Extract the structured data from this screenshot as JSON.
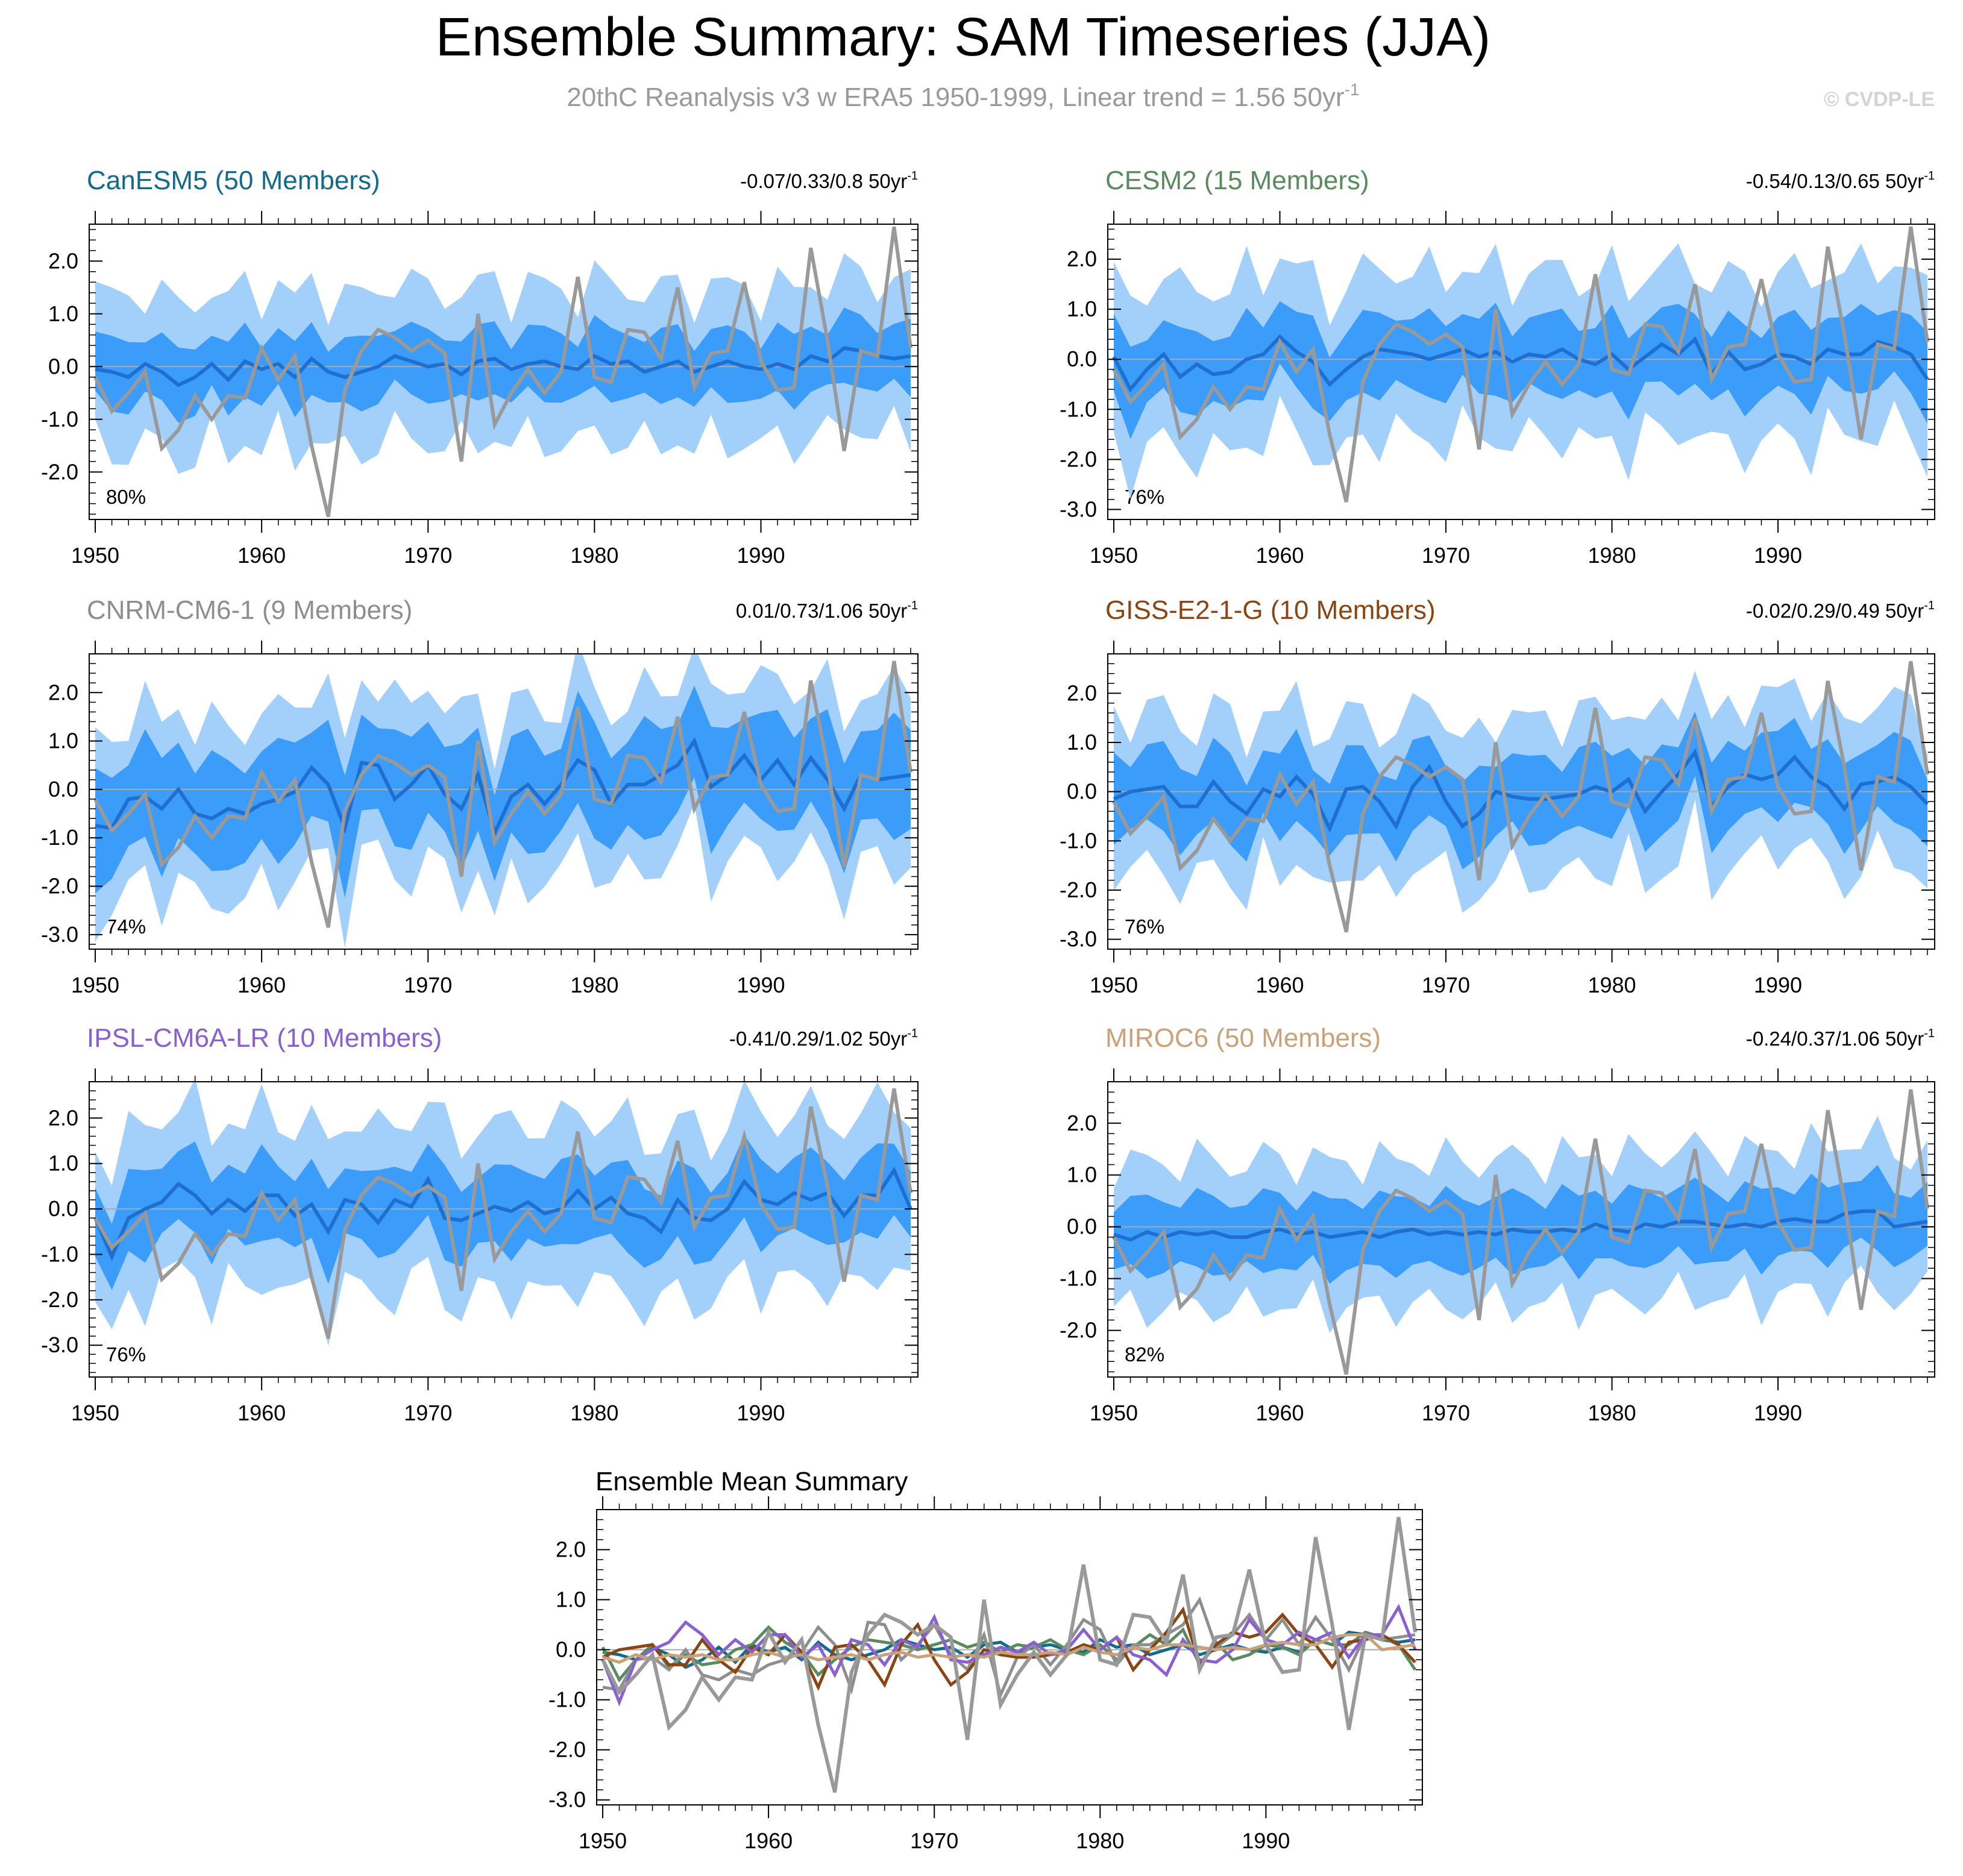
{
  "header": {
    "title": "Ensemble Summary: SAM Timeseries (JJA)",
    "subtitle": "20thC Reanalysis v3 w ERA5 1950-1999, Linear trend = 1.56 50yr",
    "subtitle_sup": "-1",
    "credit": "© CVDP-LE"
  },
  "colors": {
    "outer_band": "#a3d0fb",
    "inner_band": "#3b9cf9",
    "ens_mean": "#1f6fd1",
    "obs": "#999999",
    "zero_line": "#aaaaaa"
  },
  "observed": {
    "years": [
      1950,
      1951,
      1952,
      1953,
      1954,
      1955,
      1956,
      1957,
      1958,
      1959,
      1960,
      1961,
      1962,
      1963,
      1964,
      1965,
      1966,
      1967,
      1968,
      1969,
      1970,
      1971,
      1972,
      1973,
      1974,
      1975,
      1976,
      1977,
      1978,
      1979,
      1980,
      1981,
      1982,
      1983,
      1984,
      1985,
      1986,
      1987,
      1988,
      1989,
      1990,
      1991,
      1992,
      1993,
      1994,
      1995,
      1996,
      1997,
      1998,
      1999
    ],
    "values": [
      -0.2,
      -0.85,
      -0.5,
      -0.1,
      -1.55,
      -1.2,
      -0.55,
      -1.0,
      -0.55,
      -0.6,
      0.35,
      -0.25,
      0.2,
      -1.5,
      -2.85,
      -0.45,
      0.3,
      0.7,
      0.55,
      0.3,
      0.5,
      0.25,
      -1.8,
      1.0,
      -1.1,
      -0.5,
      -0.05,
      -0.5,
      -0.1,
      1.7,
      -0.2,
      -0.3,
      0.7,
      0.65,
      0.15,
      1.5,
      -0.4,
      0.25,
      0.3,
      1.6,
      0.1,
      -0.45,
      -0.4,
      2.25,
      0.5,
      -1.6,
      0.3,
      0.2,
      2.65,
      0.35
    ]
  },
  "chart_data": [
    {
      "type": "line",
      "title": "CanESM5 (50 Members)",
      "title_color": "#126a8d",
      "stats": "-0.07/0.33/0.8 50yr",
      "stats_sup": "-1",
      "percent": "80%",
      "ylim": [
        -2.9,
        2.7
      ],
      "ticks": [
        "2.0",
        "1.0",
        "0.0",
        "-1.0",
        "-2.0"
      ],
      "xticks": [
        "1950",
        "1960",
        "1970",
        "1980",
        "1990"
      ],
      "ens_mean": [
        -0.05,
        -0.1,
        -0.2,
        0.05,
        -0.1,
        -0.35,
        -0.2,
        0.05,
        -0.25,
        0.1,
        -0.05,
        0.05,
        -0.2,
        0.15,
        -0.1,
        -0.2,
        -0.1,
        0.0,
        0.2,
        0.1,
        0.0,
        0.05,
        -0.15,
        0.1,
        0.15,
        -0.05,
        0.05,
        0.1,
        0.0,
        -0.05,
        0.2,
        0.05,
        0.1,
        -0.1,
        0.0,
        0.1,
        -0.1,
        0.0,
        0.1,
        0.0,
        -0.05,
        0.05,
        -0.05,
        0.2,
        0.1,
        0.35,
        0.3,
        0.2,
        0.15,
        0.2
      ],
      "inner_half": [
        0.62,
        0.62,
        0.62,
        0.62,
        0.62,
        0.62,
        0.62,
        0.62,
        0.62,
        0.62,
        0.62,
        0.62,
        0.62,
        0.62,
        0.62,
        0.62,
        0.62,
        0.62,
        0.62,
        0.62,
        0.62,
        0.62,
        0.62,
        0.62,
        0.62,
        0.62,
        0.62,
        0.62,
        0.62,
        0.62,
        0.62,
        0.62,
        0.62,
        0.62,
        0.62,
        0.62,
        0.62,
        0.62,
        0.62,
        0.62,
        0.62,
        0.62,
        0.62,
        0.62,
        0.62,
        0.62,
        0.62,
        0.62,
        0.62,
        0.62
      ],
      "outer_half": [
        1.45,
        1.45,
        1.45,
        1.45,
        1.45,
        1.45,
        1.45,
        1.45,
        1.45,
        1.45,
        1.45,
        1.45,
        1.45,
        1.45,
        1.45,
        1.45,
        1.45,
        1.45,
        1.45,
        1.45,
        1.45,
        1.45,
        1.45,
        1.45,
        1.45,
        1.45,
        1.45,
        1.45,
        1.45,
        1.45,
        1.45,
        1.45,
        1.45,
        1.45,
        1.45,
        1.45,
        1.45,
        1.45,
        1.45,
        1.45,
        1.45,
        1.45,
        1.45,
        1.45,
        1.45,
        1.45,
        1.45,
        1.45,
        1.45,
        1.45
      ]
    },
    {
      "type": "line",
      "title": "CESM2 (15 Members)",
      "title_color": "#5a8a5f",
      "stats": "-0.54/0.13/0.65 50yr",
      "stats_sup": "-1",
      "percent": "76%",
      "ylim": [
        -3.2,
        2.7
      ],
      "ticks": [
        "2.0",
        "1.0",
        "0.0",
        "-1.0",
        "-2.0",
        "-3.0"
      ],
      "xticks": [
        "1950",
        "1960",
        "1970",
        "1980",
        "1990"
      ],
      "ens_mean": [
        0.05,
        -0.6,
        -0.2,
        0.1,
        -0.35,
        -0.1,
        -0.3,
        -0.25,
        0.0,
        0.1,
        0.45,
        0.15,
        -0.05,
        -0.5,
        -0.2,
        0.05,
        0.2,
        0.15,
        0.1,
        0.0,
        0.1,
        0.2,
        0.05,
        0.15,
        -0.05,
        0.1,
        0.05,
        0.2,
        0.0,
        -0.1,
        0.1,
        -0.2,
        0.05,
        0.3,
        0.1,
        0.4,
        -0.3,
        0.15,
        -0.2,
        -0.1,
        0.1,
        0.05,
        -0.1,
        0.2,
        0.1,
        0.1,
        0.35,
        0.25,
        0.1,
        -0.4
      ],
      "inner_half": [
        0.75,
        0.75,
        0.75,
        0.75,
        0.75,
        0.75,
        0.75,
        0.75,
        0.75,
        0.75,
        0.75,
        0.75,
        0.75,
        0.75,
        0.75,
        0.75,
        0.75,
        0.75,
        0.75,
        0.75,
        0.75,
        0.75,
        0.75,
        0.75,
        0.75,
        0.75,
        0.75,
        0.75,
        0.75,
        0.75,
        0.75,
        0.75,
        0.75,
        0.75,
        0.75,
        0.75,
        0.75,
        0.75,
        0.75,
        0.75,
        0.75,
        0.75,
        0.75,
        0.75,
        0.75,
        0.75,
        0.75,
        0.75,
        0.75,
        0.75
      ],
      "outer_half": [
        1.65,
        1.65,
        1.65,
        1.65,
        1.65,
        1.65,
        1.65,
        1.65,
        1.65,
        1.65,
        1.65,
        1.65,
        1.65,
        1.65,
        1.65,
        1.65,
        1.65,
        1.65,
        1.65,
        1.65,
        1.65,
        1.65,
        1.65,
        1.65,
        1.65,
        1.65,
        1.65,
        1.65,
        1.65,
        1.65,
        1.65,
        1.65,
        1.65,
        1.65,
        1.65,
        1.65,
        1.65,
        1.65,
        1.65,
        1.65,
        1.65,
        1.65,
        1.65,
        1.65,
        1.65,
        1.65,
        1.65,
        1.65,
        1.65,
        1.65
      ]
    },
    {
      "type": "line",
      "title": "CNRM-CM6-1 (9 Members)",
      "title_color": "#8e8e8e",
      "stats": "0.01/0.73/1.06 50yr",
      "stats_sup": "-1",
      "percent": "74%",
      "ylim": [
        -3.3,
        2.8
      ],
      "ticks": [
        "2.0",
        "1.0",
        "0.0",
        "-1.0",
        "-2.0",
        "-3.0"
      ],
      "xticks": [
        "1950",
        "1960",
        "1970",
        "1980",
        "1990"
      ],
      "ens_mean": [
        -0.75,
        -0.8,
        -0.2,
        -0.15,
        -0.4,
        0.0,
        -0.5,
        -0.6,
        -0.4,
        -0.5,
        -0.3,
        -0.2,
        -0.05,
        0.45,
        0.1,
        -0.8,
        0.55,
        0.5,
        -0.2,
        0.1,
        0.5,
        -0.1,
        -0.4,
        0.3,
        -0.9,
        -0.15,
        0.1,
        -0.3,
        0.1,
        0.6,
        0.4,
        -0.3,
        0.1,
        0.1,
        0.3,
        0.5,
        1.0,
        0.05,
        0.3,
        0.7,
        0.2,
        0.6,
        0.1,
        0.65,
        0.2,
        -0.4,
        0.3,
        0.2,
        0.25,
        0.3
      ],
      "inner_half": [
        1.05,
        1.05,
        1.05,
        1.05,
        1.05,
        1.05,
        1.05,
        1.05,
        1.05,
        1.05,
        1.05,
        1.05,
        1.05,
        1.05,
        1.05,
        1.05,
        1.05,
        1.05,
        1.05,
        1.05,
        1.05,
        1.05,
        1.05,
        1.05,
        1.05,
        1.05,
        1.05,
        1.05,
        1.05,
        1.05,
        1.05,
        1.05,
        1.05,
        1.05,
        1.05,
        1.05,
        1.05,
        1.05,
        1.05,
        1.05,
        1.05,
        1.05,
        1.05,
        1.05,
        1.05,
        1.05,
        1.05,
        1.05,
        1.05,
        1.05
      ],
      "outer_half": [
        1.8,
        1.8,
        1.8,
        1.8,
        1.8,
        1.8,
        1.8,
        1.8,
        1.8,
        1.8,
        1.8,
        1.8,
        1.8,
        1.8,
        1.8,
        1.8,
        1.8,
        1.8,
        1.8,
        1.8,
        1.8,
        1.8,
        1.8,
        1.8,
        1.8,
        1.8,
        1.8,
        1.8,
        1.8,
        1.8,
        1.8,
        1.8,
        1.8,
        1.8,
        1.8,
        1.8,
        1.8,
        1.8,
        1.8,
        1.8,
        1.8,
        1.8,
        1.8,
        1.8,
        1.8,
        1.8,
        1.8,
        1.8,
        1.8,
        1.8
      ]
    },
    {
      "type": "line",
      "title": "GISS-E2-1-G (10 Members)",
      "title_color": "#8b4513",
      "stats": "-0.02/0.29/0.49 50yr",
      "stats_sup": "-1",
      "percent": "76%",
      "ylim": [
        -3.2,
        2.8
      ],
      "ticks": [
        "2.0",
        "1.0",
        "0.0",
        "-1.0",
        "-2.0",
        "-3.0"
      ],
      "xticks": [
        "1950",
        "1960",
        "1970",
        "1980",
        "1990"
      ],
      "ens_mean": [
        -0.15,
        0.0,
        0.05,
        0.1,
        -0.3,
        -0.3,
        0.2,
        -0.2,
        -0.45,
        0.05,
        -0.1,
        0.3,
        -0.05,
        -0.75,
        0.05,
        0.1,
        -0.2,
        -0.7,
        0.1,
        0.5,
        -0.2,
        -0.7,
        -0.45,
        0.0,
        -0.1,
        -0.15,
        -0.15,
        -0.1,
        -0.05,
        0.1,
        0.0,
        0.25,
        -0.4,
        0.0,
        0.35,
        0.8,
        -0.3,
        0.1,
        0.35,
        0.25,
        0.35,
        0.7,
        0.3,
        0.1,
        -0.35,
        0.15,
        0.2,
        0.3,
        0.1,
        -0.25
      ],
      "inner_half": [
        0.8,
        0.8,
        0.8,
        0.8,
        0.8,
        0.8,
        0.8,
        0.8,
        0.8,
        0.8,
        0.8,
        0.8,
        0.8,
        0.8,
        0.8,
        0.8,
        0.8,
        0.8,
        0.8,
        0.8,
        0.8,
        0.8,
        0.8,
        0.8,
        0.8,
        0.8,
        0.8,
        0.8,
        0.8,
        0.8,
        0.8,
        0.8,
        0.8,
        0.8,
        0.8,
        0.8,
        0.8,
        0.8,
        0.8,
        0.8,
        0.8,
        0.8,
        0.8,
        0.8,
        0.8,
        0.8,
        0.8,
        0.8,
        0.8,
        0.8
      ],
      "outer_half": [
        1.6,
        1.6,
        1.6,
        1.6,
        1.6,
        1.6,
        1.6,
        1.6,
        1.6,
        1.6,
        1.6,
        1.6,
        1.6,
        1.6,
        1.6,
        1.6,
        1.6,
        1.6,
        1.6,
        1.6,
        1.6,
        1.6,
        1.6,
        1.6,
        1.6,
        1.6,
        1.6,
        1.6,
        1.6,
        1.6,
        1.6,
        1.6,
        1.6,
        1.6,
        1.6,
        1.6,
        1.6,
        1.6,
        1.6,
        1.6,
        1.6,
        1.6,
        1.6,
        1.6,
        1.6,
        1.6,
        1.6,
        1.6,
        1.6,
        1.6
      ]
    },
    {
      "type": "line",
      "title": "IPSL-CM6A-LR (10 Members)",
      "title_color": "#8a5fd1",
      "stats": "-0.41/0.29/1.02 50yr",
      "stats_sup": "-1",
      "percent": "76%",
      "ylim": [
        -3.7,
        2.8
      ],
      "ticks": [
        "2.0",
        "1.0",
        "0.0",
        "-1.0",
        "-2.0",
        "-3.0"
      ],
      "xticks": [
        "1950",
        "1960",
        "1970",
        "1980",
        "1990"
      ],
      "ens_mean": [
        -0.2,
        -1.05,
        -0.2,
        0.0,
        0.15,
        0.55,
        0.3,
        -0.1,
        0.2,
        -0.05,
        0.3,
        0.3,
        -0.15,
        0.1,
        -0.5,
        0.2,
        0.1,
        -0.3,
        0.2,
        0.05,
        0.65,
        -0.2,
        -0.25,
        -0.1,
        0.05,
        -0.05,
        0.15,
        -0.1,
        0.0,
        0.4,
        0.0,
        0.25,
        -0.1,
        -0.2,
        -0.5,
        0.2,
        -0.2,
        -0.25,
        0.0,
        0.6,
        0.2,
        0.1,
        0.35,
        0.2,
        0.35,
        -0.15,
        0.3,
        0.3,
        0.85,
        0.0
      ],
      "inner_half": [
        0.85,
        0.85,
        0.85,
        0.85,
        0.85,
        0.85,
        0.85,
        0.85,
        0.85,
        0.85,
        0.85,
        0.85,
        0.85,
        0.85,
        0.85,
        0.85,
        0.85,
        0.85,
        0.85,
        0.85,
        0.85,
        0.85,
        0.85,
        0.85,
        0.85,
        0.85,
        0.85,
        0.85,
        0.85,
        0.85,
        0.85,
        0.85,
        0.85,
        0.85,
        0.85,
        0.85,
        0.85,
        0.85,
        0.85,
        0.85,
        0.85,
        0.85,
        0.85,
        0.85,
        0.85,
        0.85,
        0.85,
        0.85,
        0.85,
        0.85
      ],
      "outer_half": [
        1.85,
        1.85,
        1.85,
        1.85,
        1.85,
        1.85,
        1.85,
        1.85,
        1.85,
        1.85,
        1.85,
        1.85,
        1.85,
        1.85,
        1.85,
        1.85,
        1.85,
        1.85,
        1.85,
        1.85,
        1.85,
        1.85,
        1.85,
        1.85,
        1.85,
        1.85,
        1.85,
        1.85,
        1.85,
        1.85,
        1.85,
        1.85,
        1.85,
        1.85,
        1.85,
        1.85,
        1.85,
        1.85,
        1.85,
        1.85,
        1.85,
        1.85,
        1.85,
        1.85,
        1.85,
        1.85,
        1.85,
        1.85,
        1.85,
        1.85
      ]
    },
    {
      "type": "line",
      "title": "MIROC6 (50 Members)",
      "title_color": "#c9a27a",
      "stats": "-0.24/0.37/1.06 50yr",
      "stats_sup": "-1",
      "percent": "82%",
      "ylim": [
        -2.9,
        2.8
      ],
      "ticks": [
        "2.0",
        "1.0",
        "0.0",
        "-1.0",
        "-2.0"
      ],
      "xticks": [
        "1950",
        "1960",
        "1970",
        "1980",
        "1990"
      ],
      "ens_mean": [
        -0.15,
        -0.25,
        -0.1,
        -0.2,
        -0.1,
        -0.15,
        -0.1,
        -0.2,
        -0.2,
        -0.1,
        -0.05,
        -0.15,
        -0.1,
        -0.2,
        -0.15,
        -0.1,
        -0.2,
        -0.1,
        -0.05,
        -0.15,
        -0.1,
        -0.15,
        -0.1,
        -0.15,
        -0.05,
        -0.1,
        -0.1,
        -0.05,
        -0.1,
        0.05,
        -0.05,
        -0.1,
        0.05,
        0.0,
        0.1,
        0.1,
        0.05,
        0.0,
        0.05,
        0.0,
        0.1,
        0.15,
        0.1,
        0.1,
        0.25,
        0.3,
        0.3,
        0.0,
        0.05,
        0.1
      ],
      "inner_half": [
        0.68,
        0.68,
        0.68,
        0.68,
        0.68,
        0.68,
        0.68,
        0.68,
        0.68,
        0.68,
        0.68,
        0.68,
        0.68,
        0.68,
        0.68,
        0.68,
        0.68,
        0.68,
        0.68,
        0.68,
        0.68,
        0.68,
        0.68,
        0.68,
        0.68,
        0.68,
        0.68,
        0.68,
        0.68,
        0.68,
        0.68,
        0.68,
        0.68,
        0.68,
        0.68,
        0.68,
        0.68,
        0.68,
        0.68,
        0.68,
        0.68,
        0.68,
        0.68,
        0.68,
        0.68,
        0.68,
        0.68,
        0.68,
        0.68,
        0.68
      ],
      "outer_half": [
        1.4,
        1.4,
        1.4,
        1.4,
        1.4,
        1.4,
        1.4,
        1.4,
        1.4,
        1.4,
        1.4,
        1.4,
        1.4,
        1.4,
        1.4,
        1.4,
        1.4,
        1.4,
        1.4,
        1.4,
        1.4,
        1.4,
        1.4,
        1.4,
        1.4,
        1.4,
        1.4,
        1.4,
        1.4,
        1.4,
        1.4,
        1.4,
        1.4,
        1.4,
        1.4,
        1.4,
        1.4,
        1.4,
        1.4,
        1.4,
        1.4,
        1.4,
        1.4,
        1.4,
        1.4,
        1.4,
        1.4,
        1.4,
        1.4,
        1.4
      ]
    },
    {
      "type": "line",
      "title": "Ensemble Mean Summary",
      "ylim": [
        -3.1,
        2.8
      ],
      "ticks": [
        "2.0",
        "1.0",
        "0.0",
        "-1.0",
        "-2.0",
        "-3.0"
      ],
      "xticks": [
        "1950",
        "1960",
        "1970",
        "1980",
        "1990"
      ],
      "series_from_panels": true
    }
  ]
}
